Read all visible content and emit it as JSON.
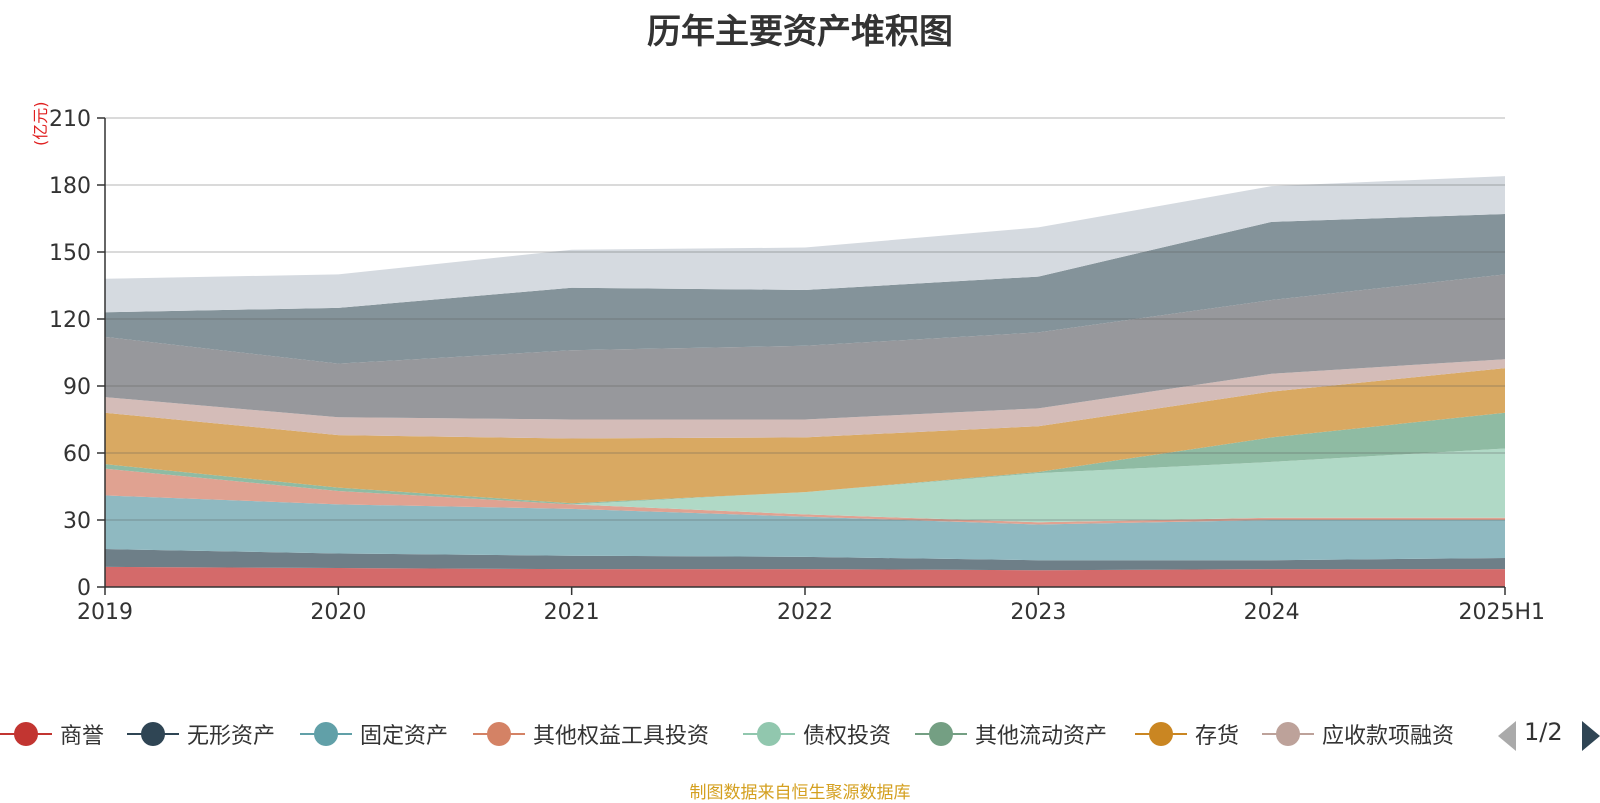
{
  "title": "历年主要资产堆积图",
  "source": "制图数据来自恒生聚源数据库",
  "pager": {
    "text": "1/2"
  },
  "chart_data": {
    "type": "area",
    "stacked": true,
    "ylabel": "(亿元)",
    "ylim": [
      0,
      210
    ],
    "yticks": [
      0,
      30,
      60,
      90,
      120,
      150,
      180,
      210
    ],
    "grid": true,
    "legend_position": "bottom",
    "categories": [
      "2019",
      "2020",
      "2021",
      "2022",
      "2023",
      "2024",
      "2025H1"
    ],
    "series": [
      {
        "name": "商誉",
        "color": "#d46a6a",
        "values": [
          9,
          8.5,
          8,
          8,
          7.5,
          8,
          8
        ]
      },
      {
        "name": "无形资产",
        "color": "#6e7f88",
        "values": [
          8,
          6.5,
          6,
          5.5,
          4.5,
          4,
          5
        ]
      },
      {
        "name": "固定资产",
        "color": "#8fb9c1",
        "values": [
          24,
          22,
          21,
          18,
          16,
          18,
          17
        ]
      },
      {
        "name": "其他权益工具投资",
        "color": "#e0a291",
        "values": [
          12,
          6,
          2,
          1,
          1,
          1,
          1
        ]
      },
      {
        "name": "债权投资",
        "color": "#b0d9c6",
        "values": [
          0,
          0,
          0,
          10,
          22,
          25,
          31
        ]
      },
      {
        "name": "其他流动资产",
        "color": "#8fbba3",
        "values": [
          2,
          1.5,
          0.5,
          0,
          0.5,
          11,
          16
        ]
      },
      {
        "name": "存货",
        "color": "#d9a962",
        "values": [
          23,
          23.5,
          29,
          24.5,
          20.5,
          20.5,
          20
        ]
      },
      {
        "name": "应收款项融资",
        "color": "#d4bcb8",
        "values": [
          7,
          8,
          8.5,
          8,
          8,
          8,
          4
        ]
      },
      {
        "name": "",
        "color": "#97989c",
        "values": [
          27,
          24,
          31,
          33,
          34,
          33,
          38
        ]
      },
      {
        "name": "",
        "color": "#84939a",
        "values": [
          11,
          25,
          28,
          25,
          25,
          35,
          27
        ]
      },
      {
        "name": "",
        "color": "#d5dae0",
        "values": [
          15,
          15,
          17,
          19,
          22,
          16,
          17
        ]
      }
    ],
    "legend_items": [
      "商誉",
      "无形资产",
      "固定资产",
      "其他权益工具投资",
      "债权投资",
      "其他流动资产",
      "存货",
      "应收款项融资"
    ],
    "legend_colors": [
      "#c23531",
      "#2f4554",
      "#61a0a8",
      "#d48265",
      "#91c7ae",
      "#749f83",
      "#ca8622",
      "#bda29a"
    ]
  }
}
